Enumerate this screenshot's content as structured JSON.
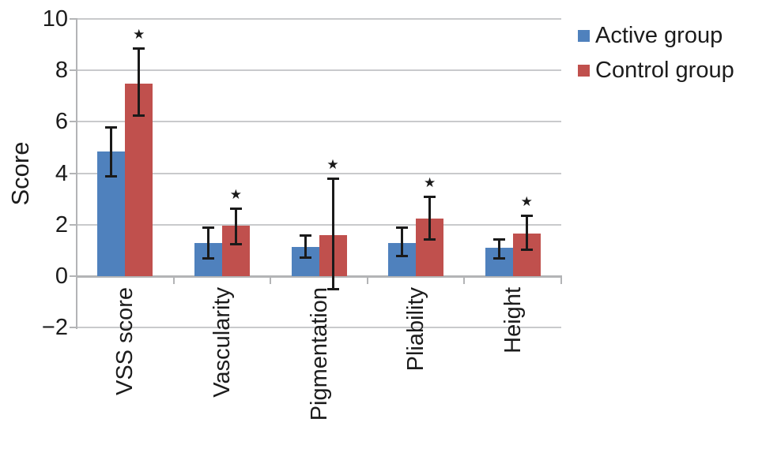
{
  "chart_data": {
    "type": "bar",
    "title": "",
    "ylabel": "Score",
    "xlabel": "",
    "categories": [
      "VSS score",
      "Vascularity",
      "Pigmentation",
      "Pliability",
      "Height"
    ],
    "series": [
      {
        "name": "Active group",
        "color": "#4F81BD",
        "values": [
          4.85,
          1.3,
          1.15,
          1.3,
          1.1
        ],
        "error_bars": [
          [
            3.9,
            5.8
          ],
          [
            0.7,
            1.9
          ],
          [
            0.75,
            1.6
          ],
          [
            0.8,
            1.9
          ],
          [
            0.7,
            1.45
          ]
        ]
      },
      {
        "name": "Control group",
        "color": "#C0504D",
        "values": [
          7.5,
          1.95,
          1.6,
          2.25,
          1.65
        ],
        "error_bars": [
          [
            6.25,
            8.85
          ],
          [
            1.25,
            2.65
          ],
          [
            -0.5,
            3.8
          ],
          [
            1.45,
            3.1
          ],
          [
            1.05,
            2.35
          ]
        ]
      }
    ],
    "significance": {
      "marker": "★",
      "series": "Control group",
      "categories": [
        "VSS score",
        "Vascularity",
        "Pigmentation",
        "Pliability",
        "Height"
      ]
    },
    "ylim": [
      -2,
      10
    ],
    "yticks": [
      {
        "v": 10,
        "label": "10"
      },
      {
        "v": 8,
        "label": "8"
      },
      {
        "v": 6,
        "label": "6"
      },
      {
        "v": 4,
        "label": "4"
      },
      {
        "v": 2,
        "label": "2"
      },
      {
        "v": 0,
        "label": "0"
      },
      {
        "v": -2,
        "label": "−2"
      }
    ],
    "grid": true,
    "error_bar_color": "#1a1a1a",
    "legend_position": "top-right",
    "x_labels_rotation": "90deg-bottom-to-top"
  }
}
